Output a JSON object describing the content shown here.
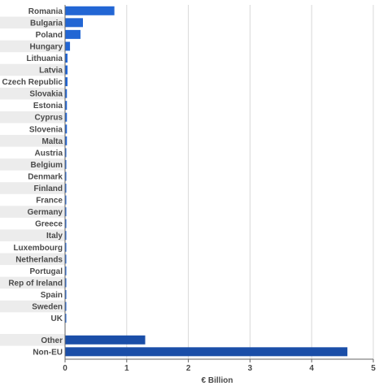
{
  "chart_data": {
    "type": "bar",
    "orientation": "horizontal",
    "title": "",
    "xlabel": "€ Billion",
    "ylabel": "",
    "xlim": [
      0,
      5
    ],
    "xticks": [
      0,
      1,
      2,
      3,
      4,
      5
    ],
    "grid": true,
    "legend": "none",
    "colors": {
      "eu_bar": "#2266d4",
      "aggregate_bar": "#1a4ea8",
      "row_band": "#ececec",
      "grid": "#d8d8d8",
      "axis": "#666666"
    },
    "categories": [
      "Romania",
      "Bulgaria",
      "Poland",
      "Hungary",
      "Lithuania",
      "Latvia",
      "Czech Republic",
      "Slovakia",
      "Estonia",
      "Cyprus",
      "Slovenia",
      "Malta",
      "Austria",
      "Belgium",
      "Denmark",
      "Finland",
      "France",
      "Germany",
      "Greece",
      "Italy",
      "Luxembourg",
      "Netherlands",
      "Portugal",
      "Rep of Ireland",
      "Spain",
      "Sweden",
      "UK"
    ],
    "values": [
      0.8,
      0.29,
      0.25,
      0.08,
      0.04,
      0.04,
      0.04,
      0.03,
      0.03,
      0.03,
      0.03,
      0.03,
      0.02,
      0.02,
      0.02,
      0.02,
      0.02,
      0.02,
      0.02,
      0.02,
      0.02,
      0.02,
      0.02,
      0.02,
      0.02,
      0.02,
      0.02
    ],
    "aggregate_categories": [
      "Other",
      "Non-EU"
    ],
    "aggregate_values": [
      1.3,
      4.58
    ]
  }
}
